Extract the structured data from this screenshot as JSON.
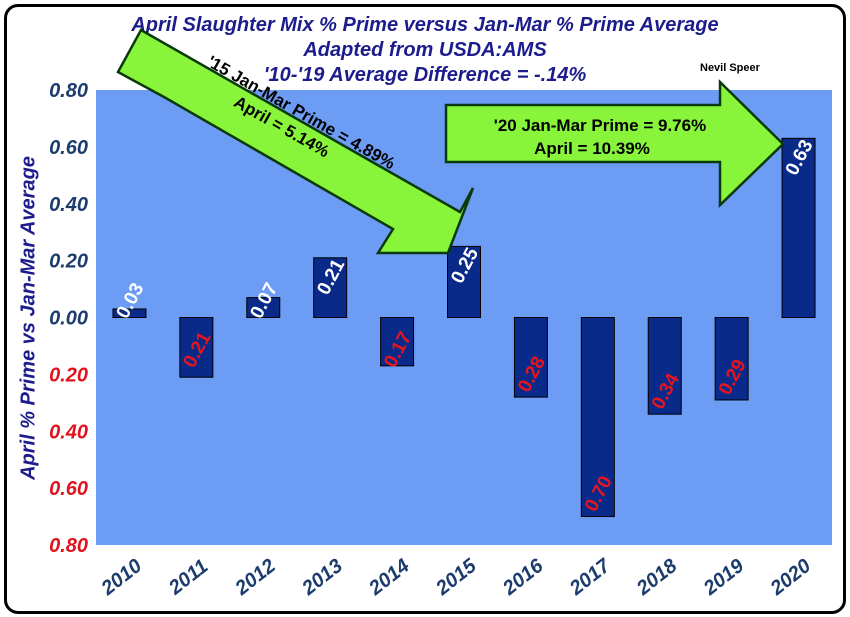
{
  "chart_data": {
    "type": "bar",
    "title": "April Slaughter Mix % Prime versus Jan-Mar % Prime Average",
    "subtitle": "Adapted from USDA:AMS",
    "subtitle2": "'10-'19 Average Difference = -.14%",
    "credit": "Nevil Speer",
    "ylabel": "April % Prime vs Jan-Mar Average",
    "xlabel": "",
    "categories": [
      "2010",
      "2011",
      "2012",
      "2013",
      "2014",
      "2015",
      "2016",
      "2017",
      "2018",
      "2019",
      "2020"
    ],
    "values": [
      0.03,
      -0.21,
      0.07,
      0.21,
      -0.17,
      0.25,
      -0.28,
      -0.7,
      -0.34,
      -0.29,
      0.63
    ],
    "data_labels": [
      "0.03",
      "0.21",
      "0.07",
      "0.21",
      "0.17",
      "0.25",
      "0.28",
      "0.70",
      "0.34",
      "0.29",
      "0.63"
    ],
    "ylim": [
      -0.8,
      0.8
    ],
    "yticks": [
      0.8,
      0.6,
      0.4,
      0.2,
      0.0,
      -0.2,
      -0.4,
      -0.6,
      -0.8
    ],
    "ytick_labels": [
      "0.80",
      "0.60",
      "0.40",
      "0.20",
      "0.00",
      "0.20",
      "0.40",
      "0.60",
      "0.80"
    ],
    "grid": false,
    "legend": "none",
    "colors": {
      "plot_bg": "#6c9cf4",
      "bar": "#0a2a8a",
      "bar_border": "#000000",
      "title": "#1c1c8c",
      "positive_tick": "#1c3c6e",
      "negative_tick": "#e0141e",
      "positive_label": "#ffffff",
      "negative_label": "#e8141e",
      "arrow_fill": "#88f43a",
      "arrow_border": "#0a3a0a"
    },
    "annotations": [
      {
        "line1": "'15 Jan-Mar Prime = 4.89%",
        "line2": "April = 5.14%"
      },
      {
        "line1": "'20 Jan-Mar Prime = 9.76%",
        "line2": "April = 10.39%"
      }
    ]
  }
}
